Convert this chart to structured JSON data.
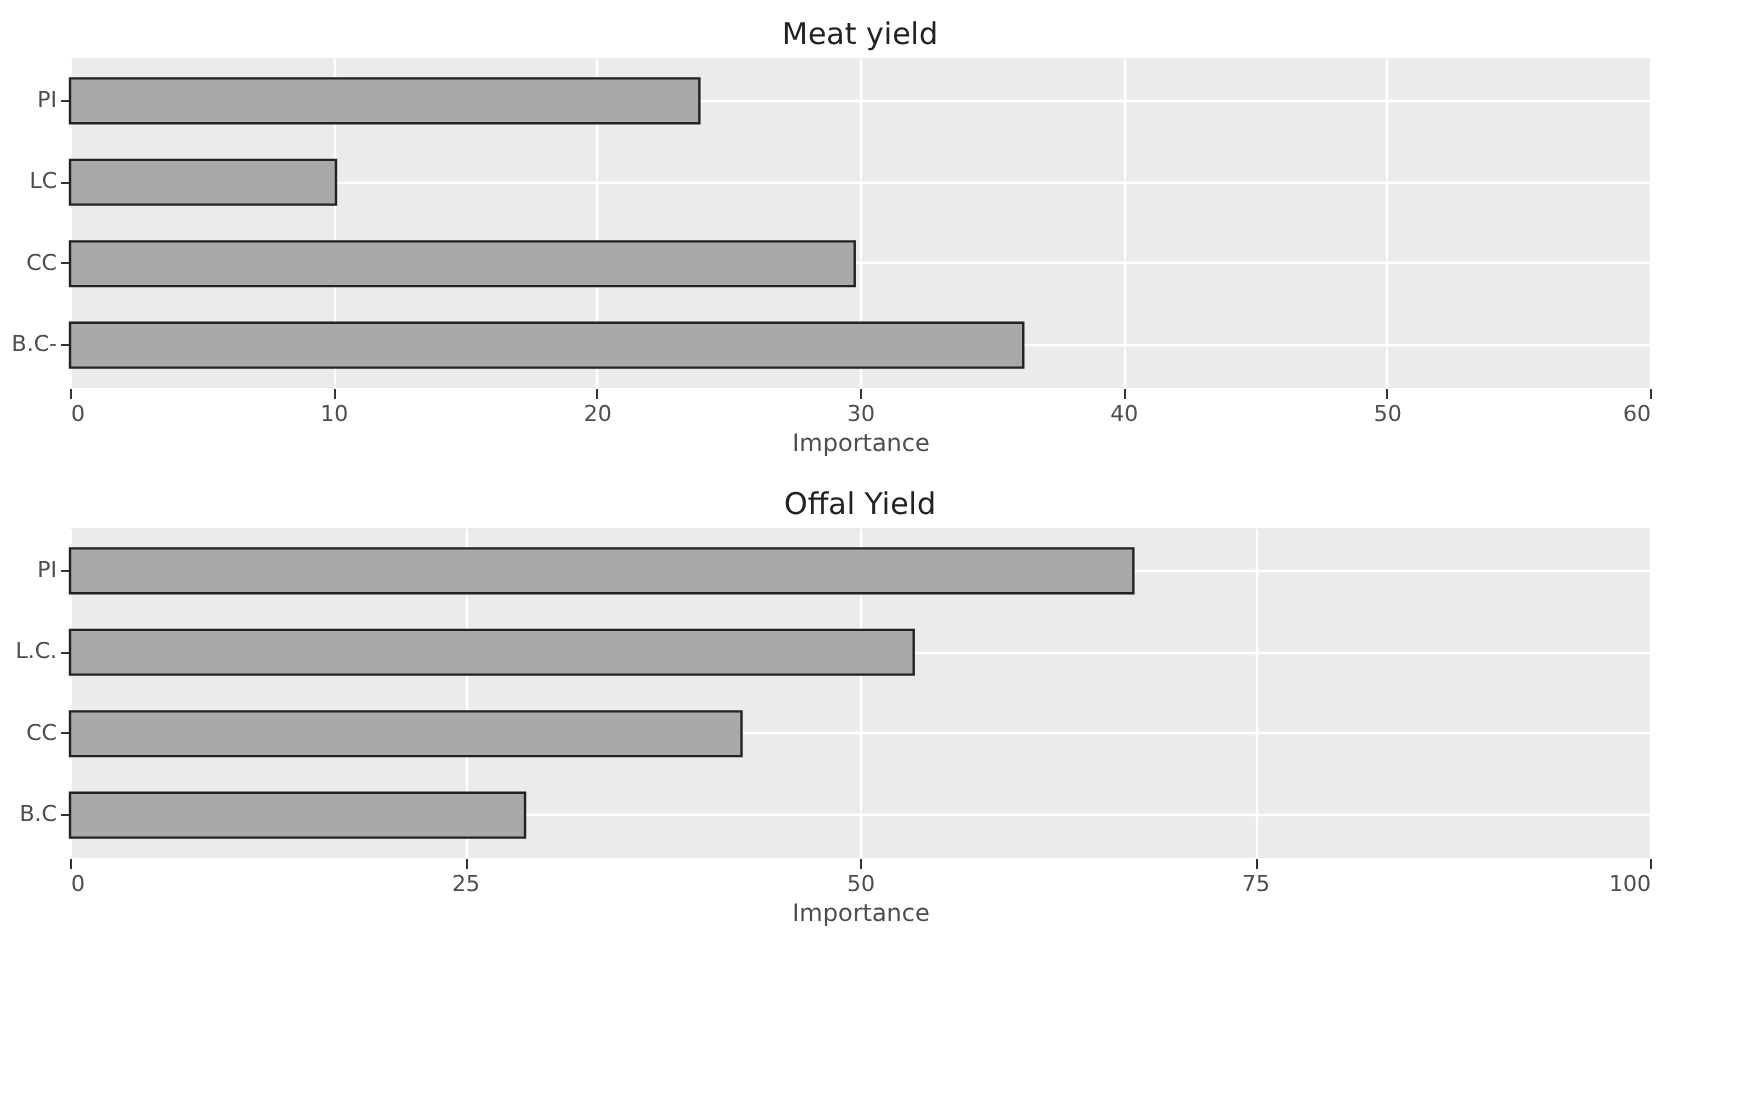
{
  "chart_data": [
    {
      "type": "bar",
      "orientation": "horizontal",
      "title": "Meat yield",
      "xlabel": "Importance",
      "categories": [
        "PI",
        "LC",
        "CC",
        "B.C-"
      ],
      "values": [
        23.9,
        10.1,
        29.8,
        36.2
      ],
      "color": "#a9a9a9",
      "xlim": [
        0,
        60
      ],
      "xticks": [
        0,
        10,
        20,
        30,
        40,
        50,
        60
      ],
      "grid": true
    },
    {
      "type": "bar",
      "orientation": "horizontal",
      "title": "Offal Yield",
      "xlabel": "Importance",
      "categories": [
        "PI",
        "L.C.",
        "CC",
        "B.C"
      ],
      "values": [
        67.3,
        53.4,
        42.5,
        28.8
      ],
      "color": "#a9a9a9",
      "xlim": [
        0,
        100
      ],
      "xticks": [
        0,
        25,
        50,
        75,
        100
      ],
      "grid": true
    }
  ]
}
